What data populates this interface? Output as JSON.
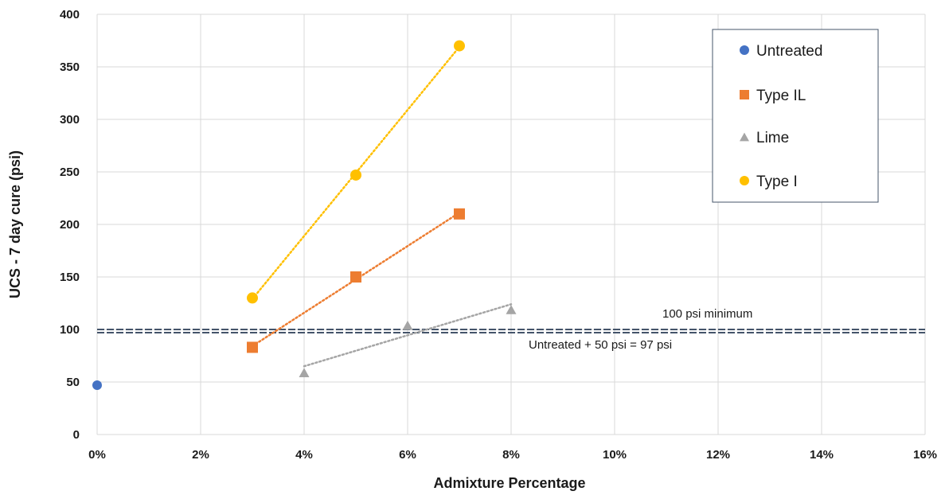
{
  "chart_data": {
    "type": "scatter",
    "title": "",
    "xlabel": "Admixture Percentage",
    "ylabel": "UCS - 7 day cure (psi)",
    "xlim": [
      0,
      16
    ],
    "ylim": [
      0,
      400
    ],
    "xticks": [
      0,
      2,
      4,
      6,
      8,
      10,
      12,
      14,
      16
    ],
    "xtick_labels": [
      "0%",
      "2%",
      "4%",
      "6%",
      "8%",
      "10%",
      "12%",
      "14%",
      "16%"
    ],
    "yticks": [
      0,
      50,
      100,
      150,
      200,
      250,
      300,
      350,
      400
    ],
    "ytick_labels": [
      "0",
      "50",
      "100",
      "150",
      "200",
      "250",
      "300",
      "350",
      "400"
    ],
    "grid": true,
    "legend_position": "top-right",
    "series": [
      {
        "name": "Untreated",
        "marker": "circle",
        "color": "#4472c4",
        "x": [
          0
        ],
        "y": [
          47
        ],
        "trendline": false
      },
      {
        "name": "Type IL",
        "marker": "square",
        "color": "#ed7d31",
        "x": [
          3,
          5,
          7
        ],
        "y": [
          83,
          150,
          210
        ],
        "trendline": true
      },
      {
        "name": "Lime",
        "marker": "triangle",
        "color": "#a5a5a5",
        "x": [
          4,
          6,
          8
        ],
        "y": [
          59,
          104,
          119
        ],
        "trendline": true,
        "trend_y": [
          65,
          124
        ]
      },
      {
        "name": "Type I",
        "marker": "circle",
        "color": "#ffc000",
        "x": [
          3,
          5,
          7
        ],
        "y": [
          130,
          247,
          370
        ],
        "trendline": true
      }
    ],
    "reference_lines": [
      {
        "label": "100 psi minimum",
        "y": 100,
        "color": "#44546a",
        "style": "dashed"
      },
      {
        "label": "Untreated + 50 psi = 97 psi",
        "y": 97,
        "color": "#44546a",
        "style": "dashed"
      }
    ]
  }
}
